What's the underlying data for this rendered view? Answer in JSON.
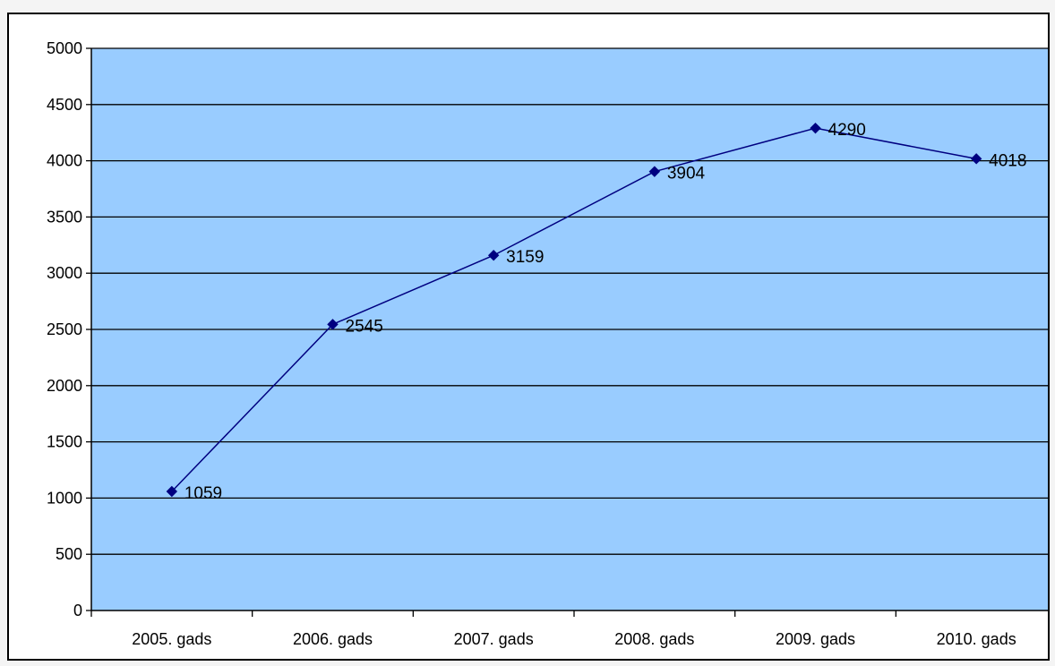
{
  "chart_data": {
    "type": "line",
    "title": "",
    "xlabel": "",
    "ylabel": "",
    "categories": [
      "2005. gads",
      "2006. gads",
      "2007. gads",
      "2008. gads",
      "2009. gads",
      "2010. gads"
    ],
    "series": [
      {
        "values": [
          1059,
          2545,
          3159,
          3904,
          4290,
          4018
        ],
        "color": "#000080",
        "marker": "diamond"
      }
    ],
    "data_labels": [
      "1059",
      "2545",
      "3159",
      "3904",
      "4290",
      "4018"
    ],
    "ylim": [
      0,
      5000
    ],
    "y_ticks": [
      0,
      500,
      1000,
      1500,
      2000,
      2500,
      3000,
      3500,
      4000,
      4500,
      5000
    ],
    "grid": "horizontal",
    "legend": "none",
    "colors": {
      "plot_background": "#99ccff",
      "gridline": "#000000",
      "line": "#000080",
      "frame_background": "#ffffff"
    }
  }
}
